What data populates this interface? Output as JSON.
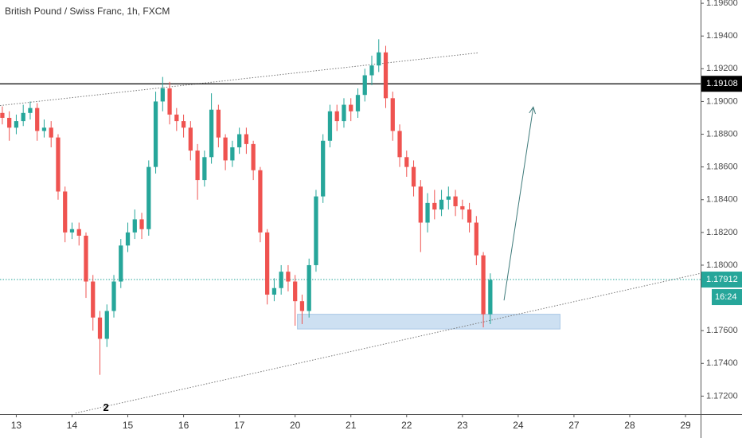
{
  "chart_data": {
    "type": "candlestick",
    "title": "British Pound / Swiss Franc, 1h, FXCM",
    "up_color": "#26a69a",
    "down_color": "#ef5350",
    "x": [
      -6,
      -3,
      0,
      3,
      6,
      9,
      12,
      15,
      18,
      21,
      24,
      27,
      30,
      33,
      36,
      39,
      42,
      45,
      48,
      51,
      54,
      57,
      60,
      63,
      66,
      69,
      72,
      75,
      78,
      81,
      84,
      87,
      90,
      93,
      96,
      99,
      102,
      105,
      108,
      111,
      114,
      117,
      120,
      123,
      126,
      129,
      132,
      135,
      138,
      141,
      144,
      147,
      150,
      153,
      156,
      159,
      162,
      165,
      168,
      171,
      174,
      177,
      180,
      183,
      186,
      189,
      192,
      195,
      198,
      201,
      204
    ],
    "open": [
      1.1893,
      1.189,
      1.1884,
      1.1888,
      1.1893,
      1.1896,
      1.1882,
      1.1884,
      1.1878,
      1.1845,
      1.182,
      1.1822,
      1.1818,
      1.179,
      1.1768,
      1.1755,
      1.1772,
      1.179,
      1.1812,
      1.182,
      1.1828,
      1.1822,
      1.186,
      1.19,
      1.1908,
      1.1892,
      1.1888,
      1.1884,
      1.187,
      1.1852,
      1.1866,
      1.1895,
      1.1878,
      1.1864,
      1.1872,
      1.188,
      1.1874,
      1.1858,
      1.182,
      1.1782,
      1.1786,
      1.1796,
      1.179,
      1.1778,
      1.1772,
      1.18,
      1.1842,
      1.1876,
      1.1894,
      1.1888,
      1.1898,
      1.1894,
      1.1904,
      1.1916,
      1.1922,
      1.193,
      1.1902,
      1.1882,
      1.1866,
      1.186,
      1.1848,
      1.1826,
      1.1838,
      1.1834,
      1.184,
      1.1842,
      1.1836,
      1.1834,
      1.1826,
      1.1806,
      1.177
    ],
    "high": [
      1.1897,
      1.1894,
      1.1892,
      1.1898,
      1.19,
      1.1899,
      1.1889,
      1.1888,
      1.188,
      1.1848,
      1.1826,
      1.1826,
      1.182,
      1.1794,
      1.1772,
      1.1776,
      1.1794,
      1.1816,
      1.1826,
      1.1834,
      1.1832,
      1.1864,
      1.1906,
      1.1915,
      1.1912,
      1.1896,
      1.1892,
      1.1888,
      1.1874,
      1.187,
      1.1905,
      1.1898,
      1.188,
      1.1876,
      1.1884,
      1.1884,
      1.1876,
      1.186,
      1.1822,
      1.1792,
      1.18,
      1.18,
      1.1794,
      1.1782,
      1.1804,
      1.1846,
      1.188,
      1.1898,
      1.1898,
      1.1902,
      1.1902,
      1.1908,
      1.192,
      1.1928,
      1.1938,
      1.1934,
      1.1906,
      1.1886,
      1.187,
      1.1864,
      1.1852,
      1.1844,
      1.1846,
      1.1846,
      1.1848,
      1.1846,
      1.184,
      1.1838,
      1.183,
      1.1808,
      1.1795
    ],
    "low": [
      1.1886,
      1.1876,
      1.188,
      1.1885,
      1.1889,
      1.1876,
      1.1878,
      1.1872,
      1.184,
      1.1814,
      1.1816,
      1.1812,
      1.178,
      1.176,
      1.1733,
      1.175,
      1.1768,
      1.1786,
      1.1808,
      1.1816,
      1.1816,
      1.1818,
      1.1856,
      1.1894,
      1.1886,
      1.1882,
      1.1878,
      1.1864,
      1.184,
      1.1848,
      1.1862,
      1.1872,
      1.1858,
      1.186,
      1.1868,
      1.1868,
      1.1852,
      1.1814,
      1.1776,
      1.1778,
      1.1782,
      1.1784,
      1.1763,
      1.1764,
      1.1768,
      1.1796,
      1.1838,
      1.1872,
      1.1882,
      1.1884,
      1.1888,
      1.189,
      1.19,
      1.191,
      1.1918,
      1.1896,
      1.1876,
      1.186,
      1.1854,
      1.1842,
      1.1808,
      1.182,
      1.1828,
      1.183,
      1.1834,
      1.183,
      1.1828,
      1.182,
      1.18,
      1.1762,
      1.1764
    ],
    "close": [
      1.189,
      1.1884,
      1.1888,
      1.1893,
      1.1896,
      1.1882,
      1.1884,
      1.1878,
      1.1845,
      1.182,
      1.1822,
      1.1818,
      1.179,
      1.1768,
      1.1755,
      1.1772,
      1.179,
      1.1812,
      1.182,
      1.1828,
      1.1822,
      1.186,
      1.19,
      1.1908,
      1.1892,
      1.1888,
      1.1884,
      1.187,
      1.1852,
      1.1866,
      1.1895,
      1.1878,
      1.1864,
      1.1872,
      1.188,
      1.1874,
      1.1858,
      1.182,
      1.1782,
      1.1786,
      1.1796,
      1.179,
      1.1778,
      1.1772,
      1.18,
      1.1842,
      1.1876,
      1.1894,
      1.1888,
      1.1898,
      1.1894,
      1.1904,
      1.1916,
      1.1922,
      1.193,
      1.1902,
      1.1882,
      1.1866,
      1.186,
      1.1848,
      1.1826,
      1.1838,
      1.1834,
      1.184,
      1.1842,
      1.1836,
      1.1834,
      1.1826,
      1.1806,
      1.177,
      1.1791
    ],
    "xlim": [
      -7,
      294.5
    ],
    "ylim": [
      1.1709,
      1.1962
    ],
    "xticks": [
      {
        "value": 0,
        "label": "13"
      },
      {
        "value": 24,
        "label": "14"
      },
      {
        "value": 48,
        "label": "15"
      },
      {
        "value": 72,
        "label": "16"
      },
      {
        "value": 96,
        "label": "17"
      },
      {
        "value": 120,
        "label": "20"
      },
      {
        "value": 144,
        "label": "21"
      },
      {
        "value": 168,
        "label": "22"
      },
      {
        "value": 192,
        "label": "23"
      },
      {
        "value": 216,
        "label": "24"
      },
      {
        "value": 240,
        "label": "27"
      },
      {
        "value": 264,
        "label": "28"
      },
      {
        "value": 288,
        "label": "29"
      }
    ],
    "yticks": [
      {
        "value": 1.196,
        "label": "1.19600"
      },
      {
        "value": 1.194,
        "label": "1.19400"
      },
      {
        "value": 1.192,
        "label": "1.19200"
      },
      {
        "value": 1.19,
        "label": "1.19000"
      },
      {
        "value": 1.188,
        "label": "1.18800"
      },
      {
        "value": 1.186,
        "label": "1.18600"
      },
      {
        "value": 1.184,
        "label": "1.18400"
      },
      {
        "value": 1.182,
        "label": "1.18200"
      },
      {
        "value": 1.18,
        "label": "1.18000"
      },
      {
        "value": 1.176,
        "label": "1.17600"
      },
      {
        "value": 1.174,
        "label": "1.17400"
      },
      {
        "value": 1.172,
        "label": "1.17200"
      }
    ],
    "horizontal_line": {
      "value": 1.19108,
      "label": "1.19108"
    },
    "last_price": {
      "value": 1.17912,
      "label": "1.17912"
    },
    "countdown": "16:24",
    "trendlines": [
      {
        "x": [
          -7,
          198.6
        ],
        "y": [
          1.18975,
          1.19297
        ]
      },
      {
        "x": [
          25.5,
          294.5
        ],
        "y": [
          1.17096,
          1.1795
        ]
      }
    ],
    "zone": {
      "x": [
        121,
        234
      ],
      "y": [
        1.1761,
        1.177
      ]
    },
    "arrow": {
      "x": [
        209.9,
        222.5
      ],
      "y": [
        1.17785,
        1.18966
      ]
    },
    "annotation": {
      "text": "2",
      "x": 38.6,
      "y": 1.17126
    }
  }
}
